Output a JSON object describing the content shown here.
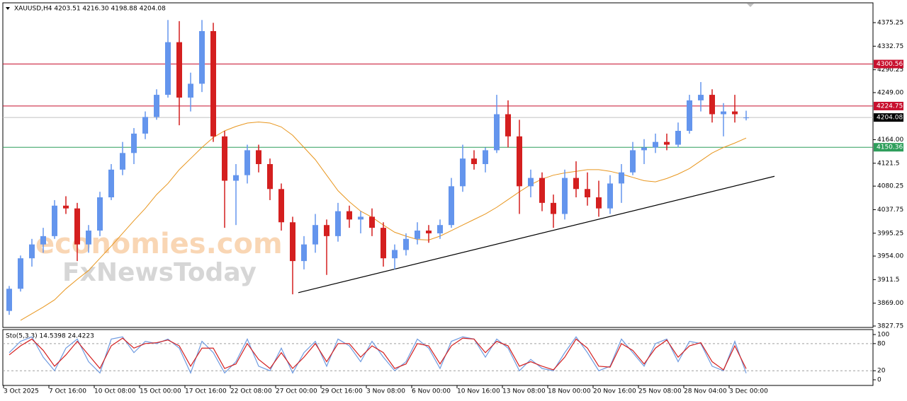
{
  "chart_data": [
    {
      "type": "candlestick",
      "title": "XAUUSD,H4  4203.51 4216.30 4198.88 4204.08",
      "watermark": [
        "economies.com",
        "FxNewsToday"
      ],
      "up_color": "#6495ed",
      "down_color": "#d41f1f",
      "ma_color": "#e8961e",
      "categories": [
        "3 Oct 2025",
        null,
        null,
        null,
        "7 Oct 16:00",
        null,
        null,
        null,
        "10 Oct 08:00",
        null,
        null,
        null,
        "15 Oct 00:00",
        null,
        null,
        null,
        "17 Oct 16:00",
        null,
        null,
        null,
        "22 Oct 08:00",
        null,
        null,
        null,
        "27 Oct 00:00",
        null,
        null,
        null,
        "29 Oct 16:00",
        null,
        null,
        null,
        "3 Nov 08:00",
        null,
        null,
        null,
        "6 Nov 00:00",
        null,
        null,
        null,
        "10 Nov 16:00",
        null,
        null,
        null,
        "13 Nov 08:00",
        null,
        null,
        null,
        "18 Nov 00:00",
        null,
        null,
        null,
        "20 Nov 16:00",
        null,
        null,
        null,
        "25 Nov 08:00",
        null,
        null,
        null,
        "28 Nov 04:00",
        null,
        null,
        null,
        "3 Dec 00:00",
        null
      ],
      "ohlc": [
        [
          3855,
          3900,
          3848,
          3895
        ],
        [
          3895,
          3955,
          3890,
          3950
        ],
        [
          3950,
          3985,
          3935,
          3975
        ],
        [
          3975,
          4005,
          3960,
          3990
        ],
        [
          3990,
          4055,
          3985,
          4045
        ],
        [
          4045,
          4062,
          4030,
          4040
        ],
        [
          4040,
          4050,
          3945,
          3975
        ],
        [
          3975,
          4010,
          3960,
          4000
        ],
        [
          4000,
          4070,
          3990,
          4060
        ],
        [
          4060,
          4120,
          4055,
          4110
        ],
        [
          4110,
          4160,
          4100,
          4140
        ],
        [
          4140,
          4185,
          4120,
          4175
        ],
        [
          4175,
          4215,
          4165,
          4205
        ],
        [
          4205,
          4255,
          4200,
          4245
        ],
        [
          4245,
          4380,
          4240,
          4340
        ],
        [
          4340,
          4378,
          4190,
          4240
        ],
        [
          4240,
          4285,
          4215,
          4265
        ],
        [
          4265,
          4380,
          4250,
          4360
        ],
        [
          4360,
          4375,
          4160,
          4170
        ],
        [
          4170,
          4180,
          4005,
          4090
        ],
        [
          4090,
          4120,
          4010,
          4100
        ],
        [
          4100,
          4155,
          4085,
          4145
        ],
        [
          4145,
          4155,
          4105,
          4120
        ],
        [
          4120,
          4130,
          4055,
          4075
        ],
        [
          4075,
          4085,
          4000,
          4015
        ],
        [
          4015,
          4025,
          3885,
          3945
        ],
        [
          3945,
          3990,
          3930,
          3975
        ],
        [
          3975,
          4030,
          3960,
          4010
        ],
        [
          4010,
          4020,
          3920,
          3990
        ],
        [
          3990,
          4050,
          3980,
          4035
        ],
        [
          4035,
          4045,
          4005,
          4020
        ],
        [
          4020,
          4035,
          3995,
          4025
        ],
        [
          4025,
          4040,
          3990,
          4005
        ],
        [
          4005,
          4015,
          3935,
          3950
        ],
        [
          3950,
          3975,
          3930,
          3965
        ],
        [
          3965,
          3995,
          3955,
          3985
        ],
        [
          3985,
          4015,
          3975,
          4000
        ],
        [
          4000,
          4010,
          3978,
          3995
        ],
        [
          3995,
          4020,
          3985,
          4010
        ],
        [
          4010,
          4095,
          4005,
          4080
        ],
        [
          4080,
          4155,
          4070,
          4130
        ],
        [
          4130,
          4145,
          4110,
          4120
        ],
        [
          4120,
          4150,
          4105,
          4145
        ],
        [
          4145,
          4245,
          4140,
          4210
        ],
        [
          4210,
          4235,
          4150,
          4170
        ],
        [
          4170,
          4200,
          4030,
          4080
        ],
        [
          4080,
          4110,
          4060,
          4095
        ],
        [
          4095,
          4105,
          4035,
          4050
        ],
        [
          4050,
          4065,
          4005,
          4030
        ],
        [
          4030,
          4110,
          4020,
          4095
        ],
        [
          4095,
          4125,
          4060,
          4075
        ],
        [
          4075,
          4105,
          4045,
          4060
        ],
        [
          4060,
          4090,
          4025,
          4040
        ],
        [
          4040,
          4100,
          4030,
          4085
        ],
        [
          4085,
          4120,
          4050,
          4105
        ],
        [
          4105,
          4160,
          4100,
          4145
        ],
        [
          4145,
          4165,
          4120,
          4150
        ],
        [
          4150,
          4175,
          4140,
          4160
        ],
        [
          4160,
          4175,
          4145,
          4155
        ],
        [
          4155,
          4195,
          4150,
          4180
        ],
        [
          4180,
          4245,
          4175,
          4235
        ],
        [
          4235,
          4268,
          4215,
          4245
        ],
        [
          4245,
          4255,
          4195,
          4210
        ],
        [
          4210,
          4230,
          4170,
          4215
        ],
        [
          4215,
          4245,
          4195,
          4210
        ],
        [
          4203.51,
          4216.3,
          4198.88,
          4204.08
        ]
      ],
      "ma": [
        null,
        3838,
        3850,
        3862,
        3875,
        3895,
        3912,
        3928,
        3950,
        3972,
        3995,
        4018,
        4040,
        4065,
        4085,
        4110,
        4130,
        4150,
        4168,
        4180,
        4188,
        4194,
        4196,
        4194,
        4187,
        4172,
        4150,
        4128,
        4100,
        4072,
        4052,
        4035,
        4024,
        4010,
        3997,
        3990,
        3984,
        3983,
        3990,
        4000,
        4010,
        4020,
        4030,
        4042,
        4056,
        4070,
        4083,
        4093,
        4100,
        4104,
        4107,
        4110,
        4110,
        4107,
        4102,
        4096,
        4090,
        4088,
        4094,
        4102,
        4112,
        4126,
        4140,
        4150,
        4158,
        4167
      ],
      "levels": [
        {
          "value": 4300.56,
          "color": "#c8102e"
        },
        {
          "value": 4224.75,
          "color": "#c8102e"
        },
        {
          "value": 4150.36,
          "color": "#2e9e5b"
        },
        {
          "value": 4204.08,
          "color": "#000000"
        }
      ],
      "trendline": [
        [
          25.5,
          3888
        ],
        [
          67.5,
          4098
        ]
      ],
      "ylim": [
        3825.2,
        4411
      ],
      "yticks": [
        4375.25,
        4332.75,
        4290.25,
        {
          "value": 4249,
          "label": "4249.00"
        },
        {
          "value": 4164,
          "label": "4164.00"
        },
        4121.5,
        4080.25,
        4037.75,
        3995.25,
        {
          "value": 3954,
          "label": "3954.00"
        },
        3911.5,
        {
          "value": 3869,
          "label": "3869.00"
        },
        3827.75
      ]
    },
    {
      "type": "line",
      "title": "Sto(5,3,3) 14.5398 24.4223",
      "series": [
        {
          "color": "#6f9be0",
          "values": [
            60,
            85,
            95,
            50,
            20,
            70,
            90,
            40,
            15,
            90,
            95,
            60,
            85,
            80,
            90,
            70,
            15,
            85,
            60,
            15,
            40,
            90,
            30,
            20,
            70,
            15,
            60,
            85,
            30,
            90,
            75,
            40,
            85,
            50,
            20,
            40,
            90,
            70,
            25,
            85,
            95,
            90,
            50,
            90,
            70,
            20,
            45,
            25,
            20,
            60,
            95,
            60,
            20,
            30,
            90,
            60,
            30,
            80,
            90,
            40,
            85,
            80,
            30,
            20,
            85,
            14.5398
          ]
        },
        {
          "color": "#d41f1f",
          "values": [
            55,
            75,
            90,
            65,
            30,
            55,
            85,
            55,
            25,
            75,
            92,
            70,
            80,
            82,
            88,
            75,
            30,
            70,
            70,
            25,
            35,
            80,
            45,
            25,
            60,
            25,
            50,
            80,
            40,
            80,
            80,
            50,
            75,
            60,
            25,
            35,
            80,
            75,
            35,
            75,
            92,
            90,
            60,
            85,
            75,
            30,
            40,
            30,
            22,
            50,
            90,
            70,
            30,
            28,
            80,
            65,
            35,
            70,
            88,
            50,
            75,
            82,
            40,
            22,
            75,
            24.4223
          ]
        }
      ],
      "levels": [
        20,
        80
      ],
      "ylim": [
        -12.5,
        111
      ],
      "yticks": [
        100,
        80,
        20,
        0
      ]
    }
  ]
}
